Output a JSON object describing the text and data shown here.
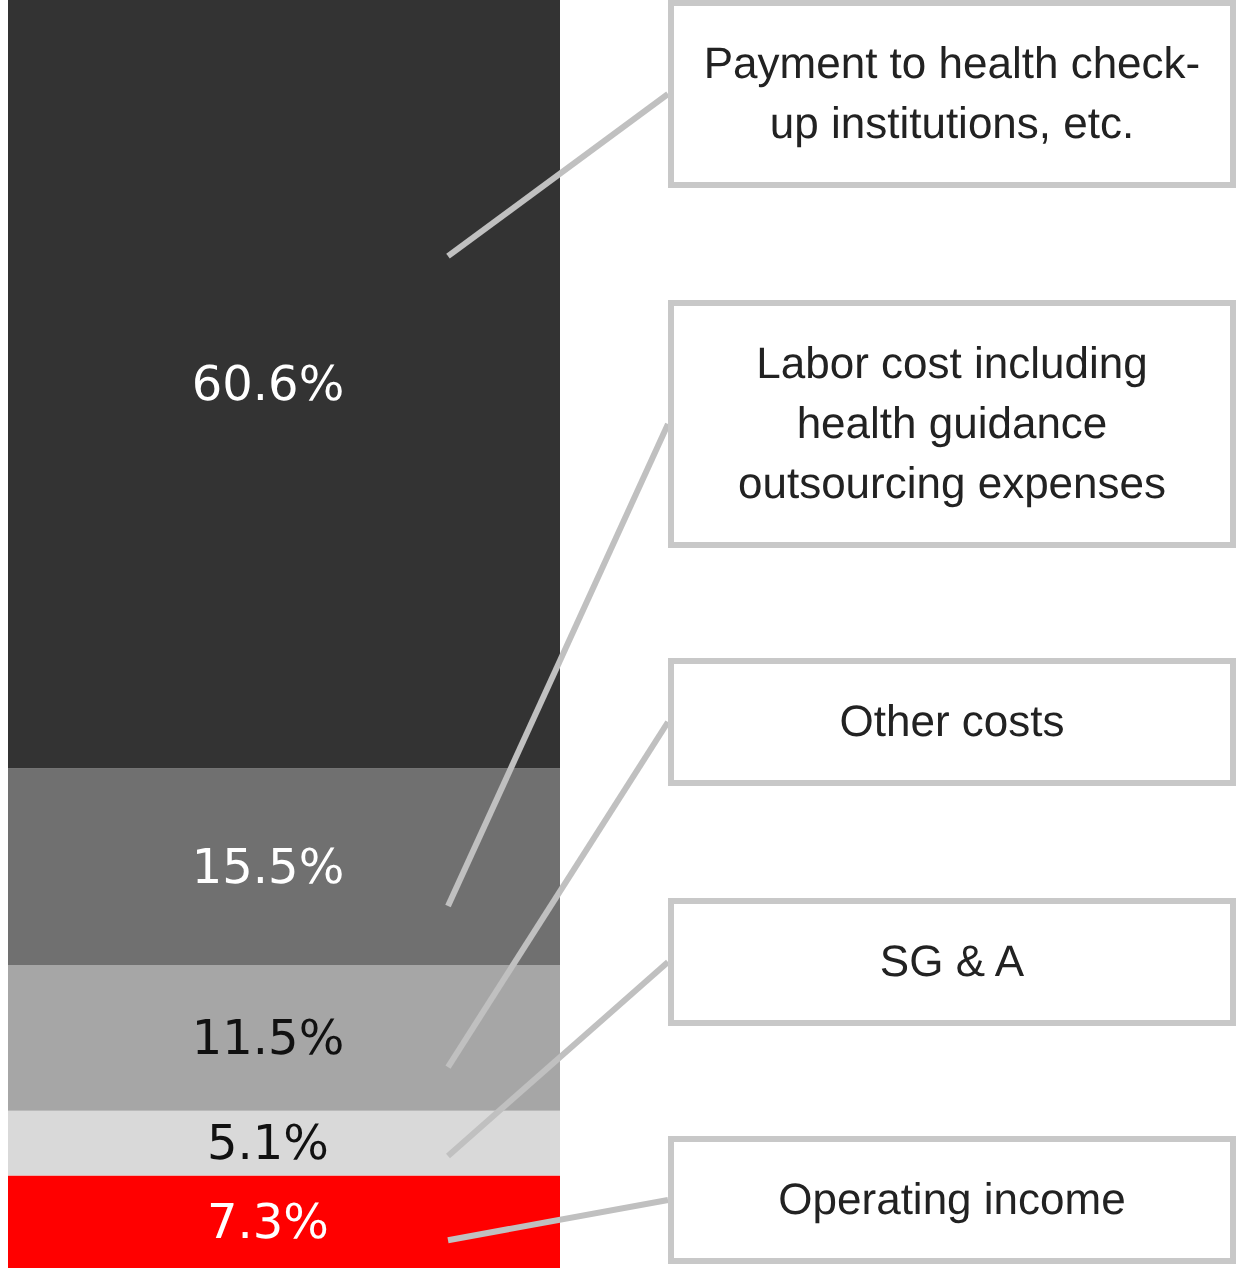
{
  "chart_data": {
    "type": "bar",
    "stacked": true,
    "categories": [
      null
    ],
    "legend": false,
    "series": [
      {
        "name": "Operating income",
        "color": "#ff0000",
        "values": [
          7.3
        ],
        "value_labels": [
          "7.3%"
        ]
      },
      {
        "name": "SG & A",
        "color": "#d9d9d9",
        "values": [
          5.1
        ],
        "value_labels": [
          "5.1%"
        ]
      },
      {
        "name": "Other costs",
        "color": "#a6a6a6",
        "values": [
          11.5
        ],
        "value_labels": [
          "11.5%"
        ]
      },
      {
        "name": "Labor cost including health guidance outsourcing expenses",
        "color": "#707070",
        "values": [
          15.5
        ],
        "value_labels": [
          "15.5%"
        ]
      },
      {
        "name": "Payment to health check-up institutions, etc.",
        "color": "#333333",
        "values": [
          60.6
        ],
        "value_labels": [
          "60.6%"
        ]
      }
    ]
  }
}
